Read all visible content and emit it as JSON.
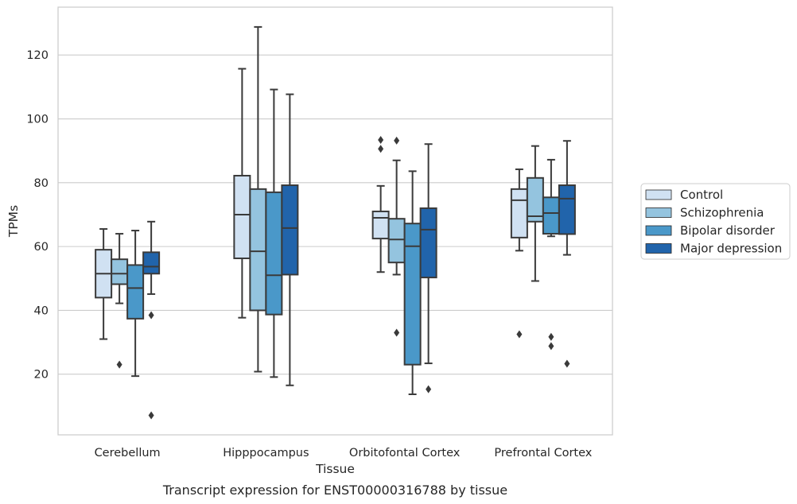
{
  "chart_data": {
    "type": "boxplot",
    "caption": "Transcript expression for ENST00000316788 by tissue",
    "xlabel": "Tissue",
    "ylabel": "TPMs",
    "ylim": [
      1,
      135
    ],
    "yticks": [
      20,
      40,
      60,
      80,
      100,
      120
    ],
    "grid": "horizontal",
    "legend_position": "right",
    "categories": [
      "Cerebellum",
      "Hipppocampus",
      "Orbitofontal Cortex",
      "Prefrontal Cortex"
    ],
    "series": [
      {
        "name": "Control",
        "color": "#d0e1f2",
        "boxes": [
          {
            "whislo": 31,
            "q1": 44,
            "med": 51.5,
            "q3": 59,
            "whishi": 65.5,
            "fliers": []
          },
          {
            "whislo": 37.7,
            "q1": 56.3,
            "med": 70,
            "q3": 82.2,
            "whishi": 115.7,
            "fliers": []
          },
          {
            "whislo": 52,
            "q1": 62.5,
            "med": 69,
            "q3": 71,
            "whishi": 79,
            "fliers": [
              90.6,
              93.4
            ]
          },
          {
            "whislo": 58.7,
            "q1": 62.8,
            "med": 74.5,
            "q3": 78,
            "whishi": 84.2,
            "fliers": [
              32.5
            ]
          }
        ]
      },
      {
        "name": "Schizophrenia",
        "color": "#94c4df",
        "boxes": [
          {
            "whislo": 42.2,
            "q1": 48.2,
            "med": 51.5,
            "q3": 56,
            "whishi": 64,
            "fliers": [
              23
            ]
          },
          {
            "whislo": 20.8,
            "q1": 40,
            "med": 58.5,
            "q3": 78,
            "whishi": 128.8,
            "fliers": []
          },
          {
            "whislo": 51.2,
            "q1": 55,
            "med": 62.2,
            "q3": 68.7,
            "whishi": 87,
            "fliers": [
              33,
              93.2
            ]
          },
          {
            "whislo": 49.2,
            "q1": 67.8,
            "med": 69.5,
            "q3": 81.5,
            "whishi": 91.5,
            "fliers": []
          }
        ]
      },
      {
        "name": "Bipolar disorder",
        "color": "#4a98c9",
        "boxes": [
          {
            "whislo": 19.4,
            "q1": 37.4,
            "med": 47,
            "q3": 54.2,
            "whishi": 65,
            "fliers": []
          },
          {
            "whislo": 19.1,
            "q1": 38.7,
            "med": 51,
            "q3": 77,
            "whishi": 109.2,
            "fliers": []
          },
          {
            "whislo": 13.7,
            "q1": 23,
            "med": 60.1,
            "q3": 67.2,
            "whishi": 83.6,
            "fliers": []
          },
          {
            "whislo": 63.2,
            "q1": 64,
            "med": 70.5,
            "q3": 75.4,
            "whishi": 87.2,
            "fliers": [
              28.8,
              31.7
            ]
          }
        ]
      },
      {
        "name": "Major depression",
        "color": "#2164ab",
        "boxes": [
          {
            "whislo": 45.1,
            "q1": 51.5,
            "med": 53.7,
            "q3": 58.2,
            "whishi": 67.8,
            "fliers": [
              7.1,
              38.5
            ]
          },
          {
            "whislo": 16.5,
            "q1": 51.2,
            "med": 65.8,
            "q3": 79.2,
            "whishi": 107.7,
            "fliers": []
          },
          {
            "whislo": 23.4,
            "q1": 50.3,
            "med": 65.3,
            "q3": 72,
            "whishi": 92.1,
            "fliers": [
              15.3
            ]
          },
          {
            "whislo": 57.4,
            "q1": 63.9,
            "med": 75,
            "q3": 79.2,
            "whishi": 93.1,
            "fliers": [
              23.3
            ]
          }
        ]
      }
    ]
  }
}
